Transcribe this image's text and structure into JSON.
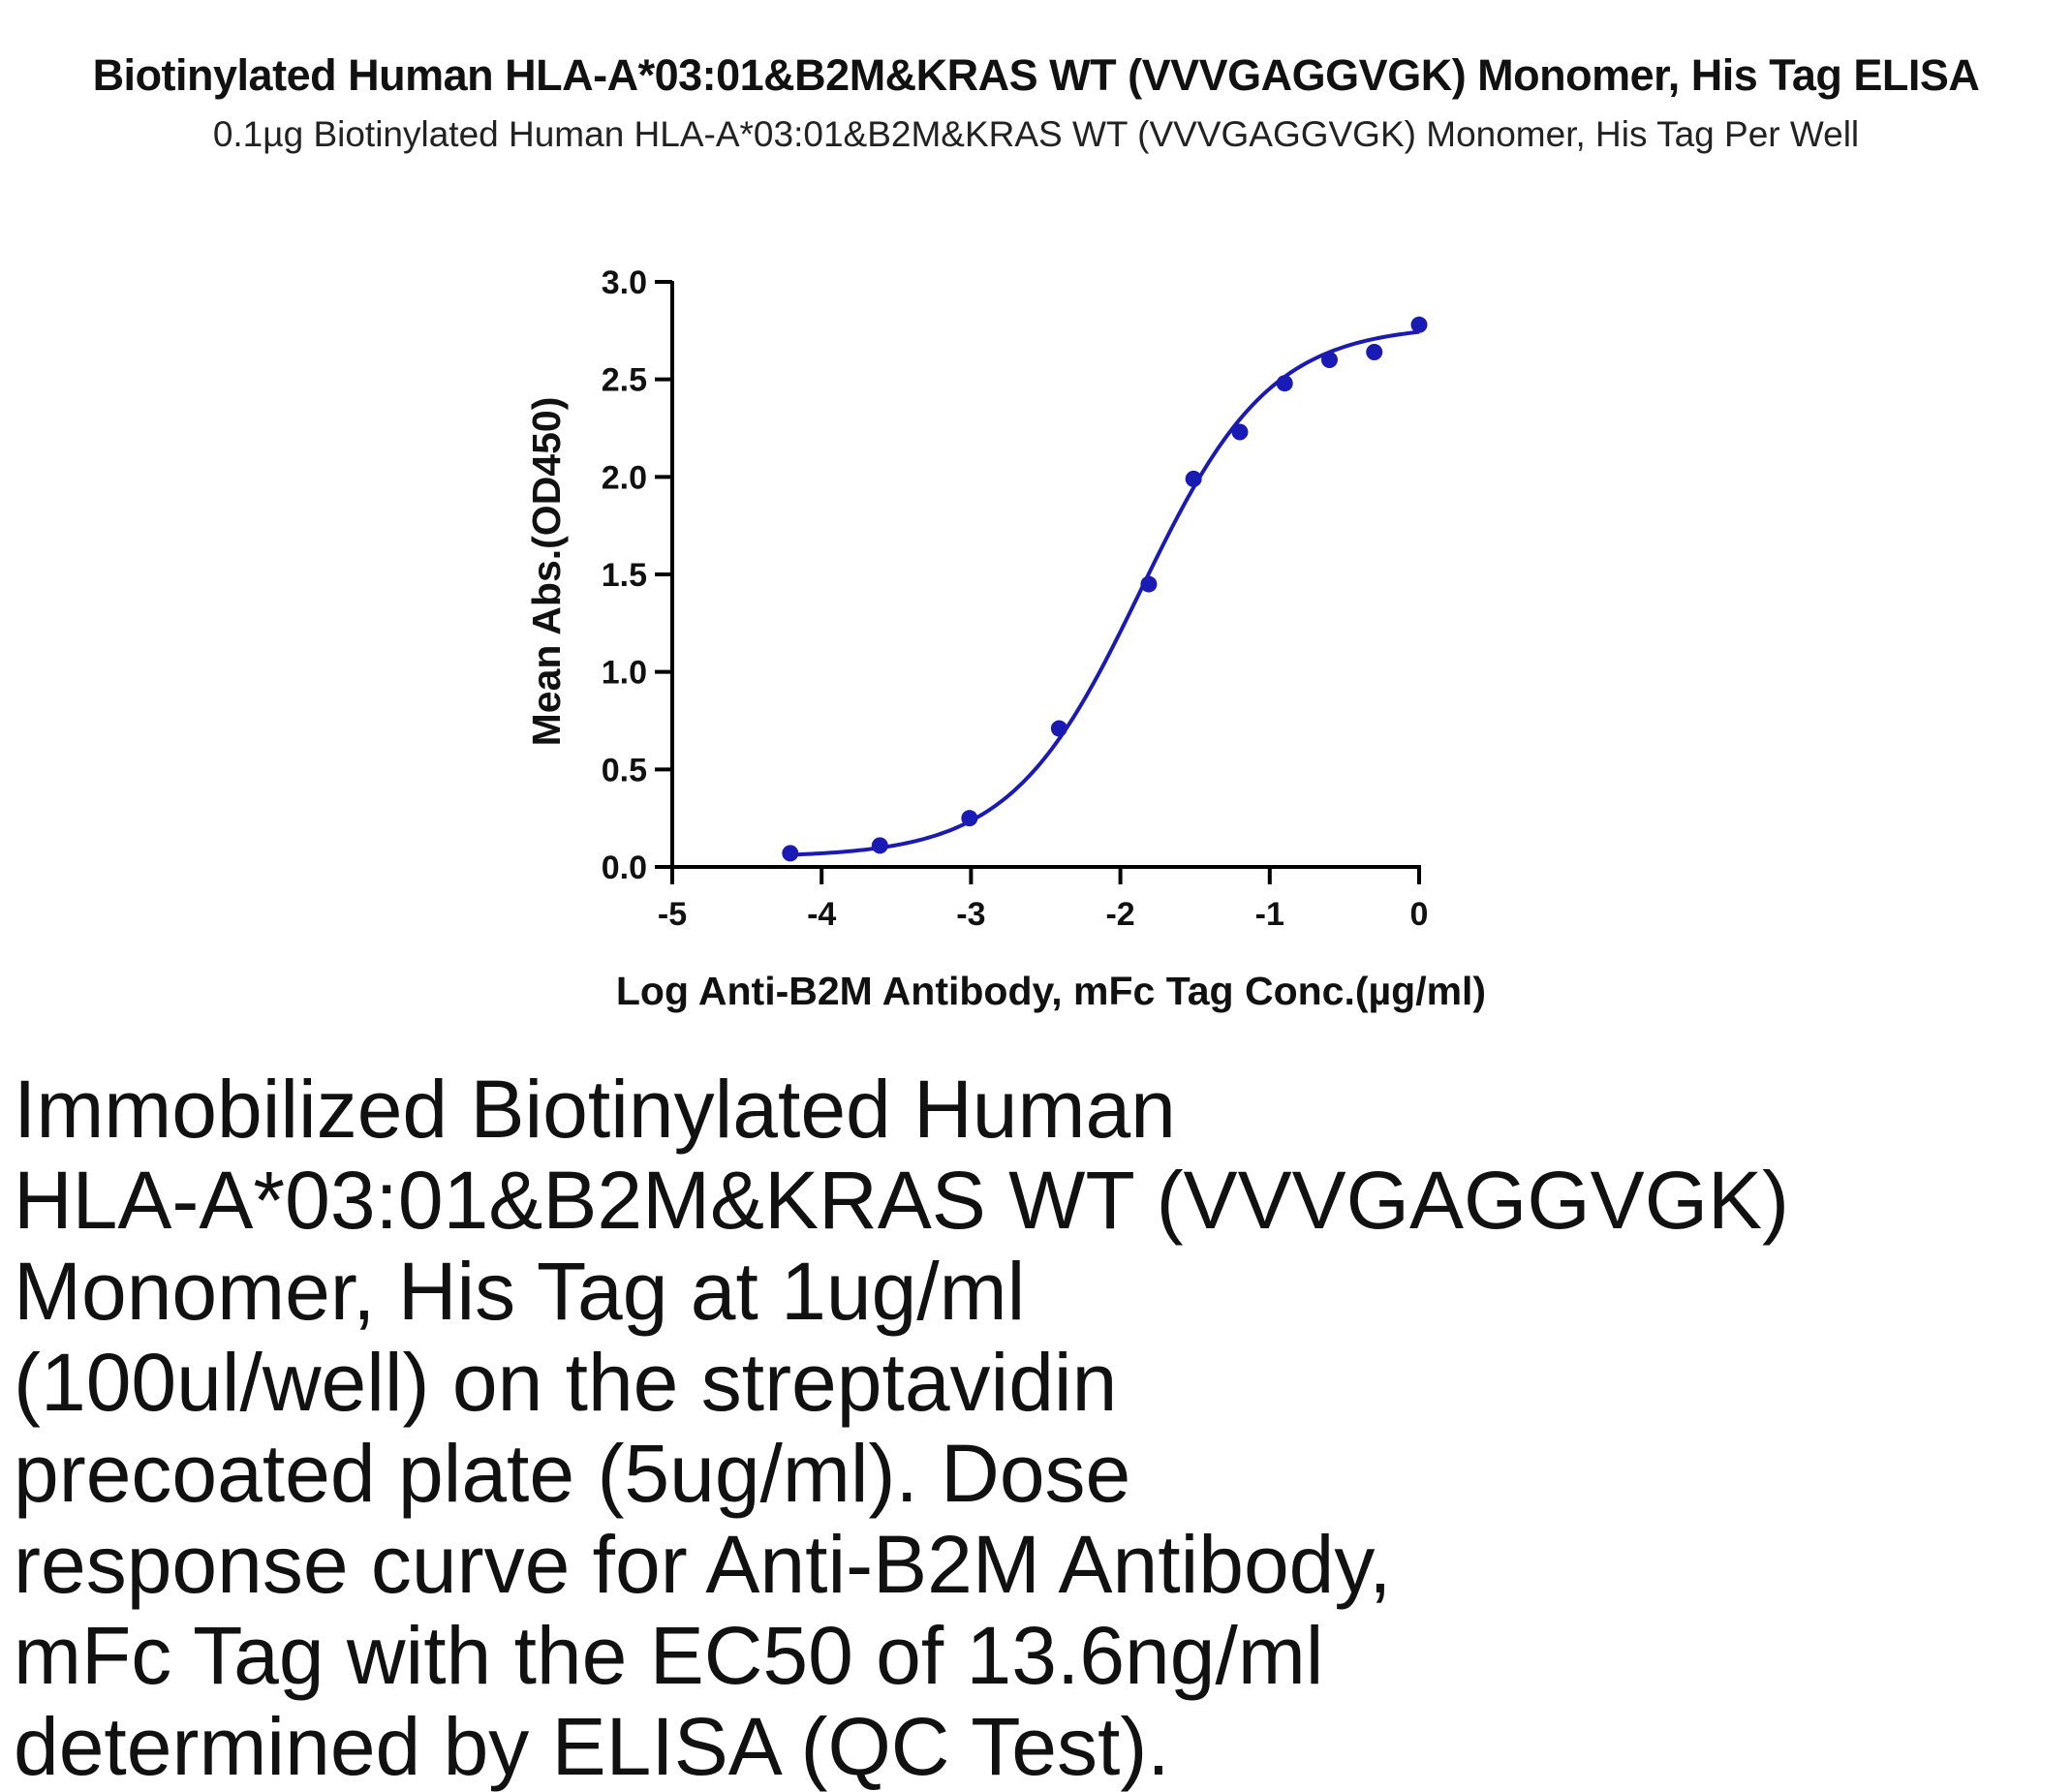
{
  "title": "Biotinylated Human HLA-A*03:01&B2M&KRAS WT (VVVGAGGVGK) Monomer, His Tag ELISA",
  "subtitle": "0.1µg Biotinylated Human HLA-A*03:01&B2M&KRAS WT (VVVGAGGVGK) Monomer, His Tag Per Well",
  "caption_lines": [
    "Immobilized Biotinylated Human",
    "HLA-A*03:01&B2M&KRAS WT (VVVGAGGVGK)",
    "Monomer, His Tag at 1ug/ml",
    "(100ul/well) on the streptavidin",
    "precoated plate (5ug/ml). Dose",
    "response curve for Anti-B2M Antibody,",
    "mFc Tag with the EC50 of 13.6ng/ml",
    "determined by ELISA (QC Test)."
  ],
  "chart_data": {
    "type": "scatter",
    "xlabel": "Log Anti-B2M Antibody, mFc Tag Conc.(µg/ml)",
    "ylabel": "Mean Abs.(OD450)",
    "xlim": [
      -5,
      0
    ],
    "ylim": [
      0,
      3.0
    ],
    "x_ticks": [
      "-5",
      "-4",
      "-3",
      "-2",
      "-1",
      "0"
    ],
    "y_ticks": [
      "0.0",
      "0.5",
      "1.0",
      "1.5",
      "2.0",
      "2.5",
      "3.0"
    ],
    "grid": false,
    "series": [
      {
        "x": [
          -4.21,
          -3.61,
          -3.01,
          -2.41,
          -1.81,
          -1.51,
          -1.2,
          -0.9,
          -0.6,
          -0.3,
          0.0
        ],
        "y": [
          0.07,
          0.11,
          0.25,
          0.71,
          1.45,
          1.99,
          2.23,
          2.48,
          2.6,
          2.64,
          2.78
        ]
      }
    ],
    "fit": {
      "bottom": 0.05,
      "top": 2.78,
      "log_ec50": -1.866,
      "hill_slope": 1.0,
      "x_start": -4.21,
      "x_end": 0.0
    },
    "colors": {
      "series": "#1a1ab4",
      "axis": "#000000"
    }
  }
}
